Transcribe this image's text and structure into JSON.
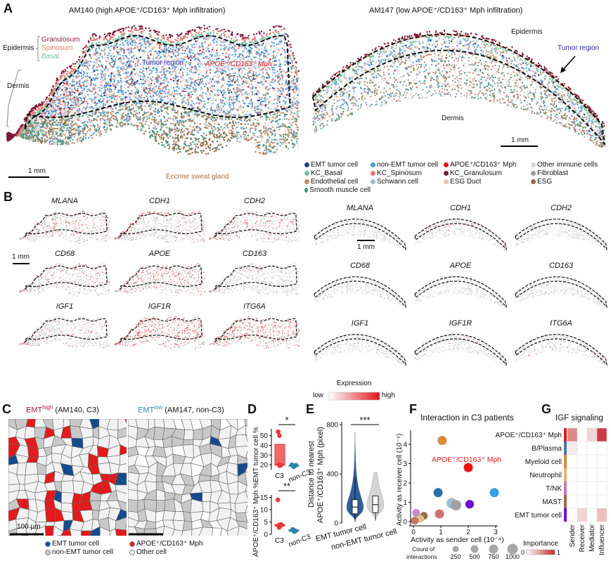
{
  "panel_labels": {
    "a": "A",
    "b": "B",
    "c": "C",
    "d": "D",
    "e": "E",
    "f": "F",
    "g": "G"
  },
  "panel_a": {
    "left_title": "AM140 (high APOE⁺/CD163⁺ Mph infiltration)",
    "right_title": "AM147 (low APOE⁺/CD163⁺ Mph infiltration)",
    "epidermis": "Epidermis",
    "granulosum": "Granulosum",
    "spinosum": "Spinosum",
    "basal": "Basal",
    "dermis": "Dermis",
    "tumor_region": "Tumor region",
    "mph_label": "APOE⁺/CD163⁺ Mph",
    "sweat_gland": "Eccrine sweat gland",
    "scale_left": "1 mm",
    "right_epidermis": "Epidermis",
    "right_tumor_region": "Tumor region",
    "right_dermis": "Dermis",
    "scale_right": "1 mm",
    "legend": [
      {
        "label": "EMT tumor cell",
        "color": "#1f3f7a"
      },
      {
        "label": "non-EMT tumor cell",
        "color": "#4a9ae0"
      },
      {
        "label": "APOE⁺/CD163⁺ Mph",
        "color": "#e01010"
      },
      {
        "label": "Other immune cells",
        "color": "#d8d8d8"
      },
      {
        "label": "KC_Basal",
        "color": "#6fc1a0"
      },
      {
        "label": "KC_Spinosum",
        "color": "#e87a72"
      },
      {
        "label": "KC_Granulosum",
        "color": "#7a1838"
      },
      {
        "label": "Fibroblast",
        "color": "#9a9a9a"
      },
      {
        "label": "Endothelial cell",
        "color": "#c08a66"
      },
      {
        "label": "Schwann cell",
        "color": "#9bb8cc"
      },
      {
        "label": "ESG Duct",
        "color": "#e8c4a0"
      },
      {
        "label": "ESG",
        "color": "#9a6a44"
      },
      {
        "label": "Smooth muscle cell",
        "color": "#3f9a86"
      }
    ]
  },
  "panel_b": {
    "genes": [
      "MLANA",
      "CDH1",
      "CDH2",
      "CD68",
      "APOE",
      "CD163",
      "IGF1",
      "IGF1R",
      "ITG6A"
    ],
    "left_expression_level": [
      0.25,
      0.4,
      0.2,
      0.15,
      0.35,
      0.08,
      0.08,
      0.55,
      0.55
    ],
    "right_expression_level": [
      0.02,
      0.08,
      0.01,
      0.02,
      0.02,
      0.01,
      0.02,
      0.06,
      0.04
    ],
    "scale_left": "1 mm",
    "scale_right": "1 mm",
    "colorbar": {
      "title": "Expression",
      "low": "low",
      "high": "high",
      "low_color": "#ffffff",
      "high_color": "#e0141e"
    }
  },
  "panel_c": {
    "left_title_main": "EMT",
    "left_title_sup": "high",
    "left_title_rest": " (AM140, C3)",
    "right_title_main": "EMT",
    "right_title_sup": "low",
    "right_title_rest": " (AM147, non-C3)",
    "scale": "100 µm",
    "legend": [
      {
        "label": "EMT tumor cell",
        "color": "#174a8c"
      },
      {
        "label": "APOE⁺/CD163⁺ Mph",
        "color": "#e31a1c"
      },
      {
        "label": "non-EMT tumor cell",
        "color": "#c8c8c8"
      },
      {
        "label": "Other cell",
        "color": "#f2f2f2"
      }
    ]
  },
  "chart_data": [
    {
      "id": "D-top",
      "type": "box",
      "ylabel": "EMT tumor cell %",
      "categories": [
        "C3",
        "non-C3"
      ],
      "ylim": [
        15,
        57
      ],
      "yticks": [
        20,
        30,
        40,
        50
      ],
      "points": [
        [
          54,
          50,
          20,
          19.5,
          19
        ],
        [
          20,
          19.5,
          19,
          18.5,
          18
        ]
      ],
      "box": [
        {
          "q1": 19.5,
          "median": 20,
          "q3": 41
        },
        {
          "q1": 18.5,
          "median": 19,
          "q3": 19.5
        }
      ],
      "significance": "*",
      "colors": [
        "#e8383a",
        "#2a86a8"
      ]
    },
    {
      "id": "D-bottom",
      "type": "box",
      "ylabel": "APOE⁺/CD163⁺ Mph %",
      "categories": [
        "C3",
        "non-C3"
      ],
      "ylim": [
        0,
        16
      ],
      "yticks": [
        0,
        5,
        10,
        15
      ],
      "points": [
        [
          14,
          4,
          3.8,
          3.6,
          3.3,
          2.8
        ],
        [
          2,
          1.8,
          1.5,
          1.3,
          1.1
        ]
      ],
      "box": [
        {
          "q1": 3.3,
          "median": 3.7,
          "q3": 4
        },
        {
          "q1": 1.2,
          "median": 1.5,
          "q3": 1.8
        }
      ],
      "significance": "**",
      "colors": [
        "#e8383a",
        "#2a86a8"
      ]
    },
    {
      "id": "E",
      "type": "violin",
      "ylabel_line1": "Distance to nearest",
      "ylabel_line2": "APOE⁺/CD163⁺ Mph (pixel)",
      "categories": [
        "EMT tumor cell",
        "non-EMT tumor cell"
      ],
      "ylim": [
        0,
        800
      ],
      "yticks": [
        0,
        400,
        800
      ],
      "stats": [
        {
          "min": 10,
          "q1": 75,
          "median": 130,
          "q3": 190,
          "max": 740
        },
        {
          "min": 20,
          "q1": 85,
          "median": 150,
          "q3": 220,
          "max": 410
        }
      ],
      "significance": "***",
      "colors": [
        "#2f5f9a",
        "#d4d4d4"
      ]
    },
    {
      "id": "F",
      "type": "scatter",
      "title": "Interaction in C3 patients",
      "xlabel": "Activity as sender cell (10⁻⁴)",
      "ylabel": "Activity as receiver cell (10⁻⁴)",
      "xlim": [
        0,
        3
      ],
      "ylim": [
        0,
        4.4
      ],
      "xticks": [
        0,
        1,
        2,
        3
      ],
      "yticks": [
        0,
        1,
        2,
        3,
        4
      ],
      "annotation": "APOE⁺/CD163⁺ Mph",
      "points": [
        {
          "x": 1.05,
          "y": 4.2,
          "color": "#d98a3c",
          "count": 500
        },
        {
          "x": 2.0,
          "y": 2.8,
          "color": "#f01010",
          "count": 500
        },
        {
          "x": 0.9,
          "y": 1.5,
          "color": "#2a6fa8",
          "count": 500
        },
        {
          "x": 2.95,
          "y": 1.5,
          "color": "#3a9ee0",
          "count": 500
        },
        {
          "x": 1.4,
          "y": 0.95,
          "color": "#a4bccf",
          "count": 750
        },
        {
          "x": 1.55,
          "y": 0.85,
          "color": "#a0a0a0",
          "count": 750
        },
        {
          "x": 2.05,
          "y": 0.9,
          "color": "#6a0dd8",
          "count": 400
        },
        {
          "x": 0.95,
          "y": 0.4,
          "color": "#d47070",
          "count": 500
        },
        {
          "x": 0.1,
          "y": 0.45,
          "color": "#c888c8",
          "count": 250
        },
        {
          "x": 0.38,
          "y": 0.3,
          "color": "#9a6a44",
          "count": 250
        },
        {
          "x": 0.25,
          "y": 0.15,
          "color": "#e0c08a",
          "count": 250
        },
        {
          "x": 0.05,
          "y": 0.05,
          "color": "#c07a60",
          "count": 250
        }
      ],
      "size_legend": {
        "title_line1": "Count of",
        "title_line2": "interactions",
        "values": [
          250,
          500,
          750,
          1000
        ]
      }
    },
    {
      "id": "G",
      "type": "heatmap",
      "title": "IGF signaling",
      "rows": [
        "APOE⁺/CD163⁺ Mph",
        "B/Plasma",
        "Myeloid cell",
        "Neutrophil",
        "T/NK",
        "MAST",
        "EMT tumor cell"
      ],
      "row_colors": [
        "#e31a1c",
        "#4b77a8",
        "#d98a3c",
        "#d8b87a",
        "#c57ab8",
        "#9c6b50",
        "#6a0dd8"
      ],
      "columns": [
        "Sender",
        "Receiver",
        "Mediator",
        "Influencer"
      ],
      "values": [
        [
          0.55,
          0,
          0.2,
          0.9
        ],
        [
          0.1,
          0,
          0,
          0
        ],
        [
          0,
          0,
          0,
          0
        ],
        [
          0,
          0,
          0,
          0
        ],
        [
          0,
          0,
          0,
          0
        ],
        [
          0,
          0,
          0,
          0
        ],
        [
          0,
          0.2,
          0,
          0.3
        ]
      ],
      "legend": {
        "title": "Importance",
        "min": "0",
        "max": "1",
        "low_color": "#ffffff",
        "high_color": "#c4262c"
      }
    }
  ]
}
